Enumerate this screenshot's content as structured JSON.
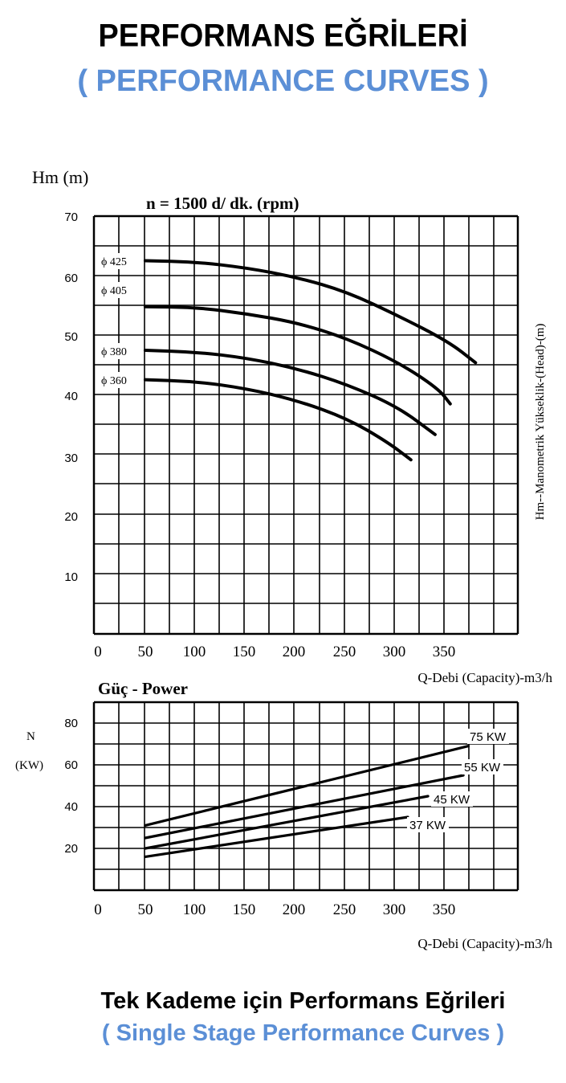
{
  "header": {
    "title": "PERFORMANS EĞRİLERİ",
    "subtitle": "( PERFORMANCE CURVES )"
  },
  "footer": {
    "title": "Tek Kademe için Performans Eğrileri",
    "subtitle": "( Single Stage Performance Curves )"
  },
  "colors": {
    "accent": "#5b8fd6",
    "ink": "#000000"
  },
  "chart_data": [
    {
      "type": "line",
      "title": "n = 1500 d/ dk.  (rpm)",
      "ylabel": "Hm (m)",
      "ylabel_right": "Hm--Manometrik Yükseklik-(Head)-(m)",
      "xlabel": "Q-Debi (Capacity)-m3/h",
      "xlim": [
        0,
        420
      ],
      "ylim": [
        0,
        70
      ],
      "x_ticks": [
        "0",
        "50",
        "100",
        "150",
        "200",
        "250",
        "300",
        "350"
      ],
      "y_ticks": [
        "10",
        "20",
        "30",
        "40",
        "50",
        "60",
        "70"
      ],
      "grid": true,
      "series": [
        {
          "name": "ϕ 425",
          "points": [
            [
              50,
              63.5
            ],
            [
              100,
              63.3
            ],
            [
              150,
              62.3
            ],
            [
              200,
              60.7
            ],
            [
              250,
              58.2
            ],
            [
              300,
              54.2
            ],
            [
              350,
              49.8
            ],
            [
              377,
              46.2
            ]
          ]
        },
        {
          "name": "ϕ 405",
          "points": [
            [
              50,
              55.7
            ],
            [
              100,
              55.6
            ],
            [
              150,
              54.5
            ],
            [
              200,
              53.0
            ],
            [
              250,
              50.3
            ],
            [
              300,
              46.3
            ],
            [
              340,
              41.8
            ],
            [
              352,
              39.2
            ]
          ]
        },
        {
          "name": "ϕ 380",
          "points": [
            [
              50,
              48.3
            ],
            [
              100,
              48.0
            ],
            [
              150,
              47.0
            ],
            [
              200,
              45.2
            ],
            [
              250,
              42.5
            ],
            [
              300,
              38.7
            ],
            [
              337,
              34.0
            ]
          ]
        },
        {
          "name": "ϕ 360",
          "points": [
            [
              50,
              43.3
            ],
            [
              100,
              43.0
            ],
            [
              150,
              41.8
            ],
            [
              200,
              39.8
            ],
            [
              250,
              36.7
            ],
            [
              290,
              32.7
            ],
            [
              313,
              29.7
            ]
          ]
        }
      ]
    },
    {
      "type": "line",
      "title": "Güç - Power",
      "ylabel": "N",
      "ylabel_unit": "(KW)",
      "xlabel": "Q-Debi (Capacity)-m3/h",
      "xlim": [
        0,
        420
      ],
      "ylim": [
        0,
        90
      ],
      "x_ticks": [
        "0",
        "50",
        "100",
        "150",
        "200",
        "250",
        "300",
        "350"
      ],
      "y_ticks": [
        "20",
        "40",
        "60",
        "80"
      ],
      "grid": true,
      "series": [
        {
          "name": "75 KW",
          "points": [
            [
              50,
              31
            ],
            [
              370,
              69
            ]
          ]
        },
        {
          "name": "55 KW",
          "points": [
            [
              50,
              25
            ],
            [
              365,
              55
            ]
          ]
        },
        {
          "name": "45 KW",
          "points": [
            [
              50,
              20
            ],
            [
              330,
              45
            ]
          ]
        },
        {
          "name": "37 KW",
          "points": [
            [
              50,
              16
            ],
            [
              310,
              35
            ]
          ]
        }
      ]
    }
  ]
}
